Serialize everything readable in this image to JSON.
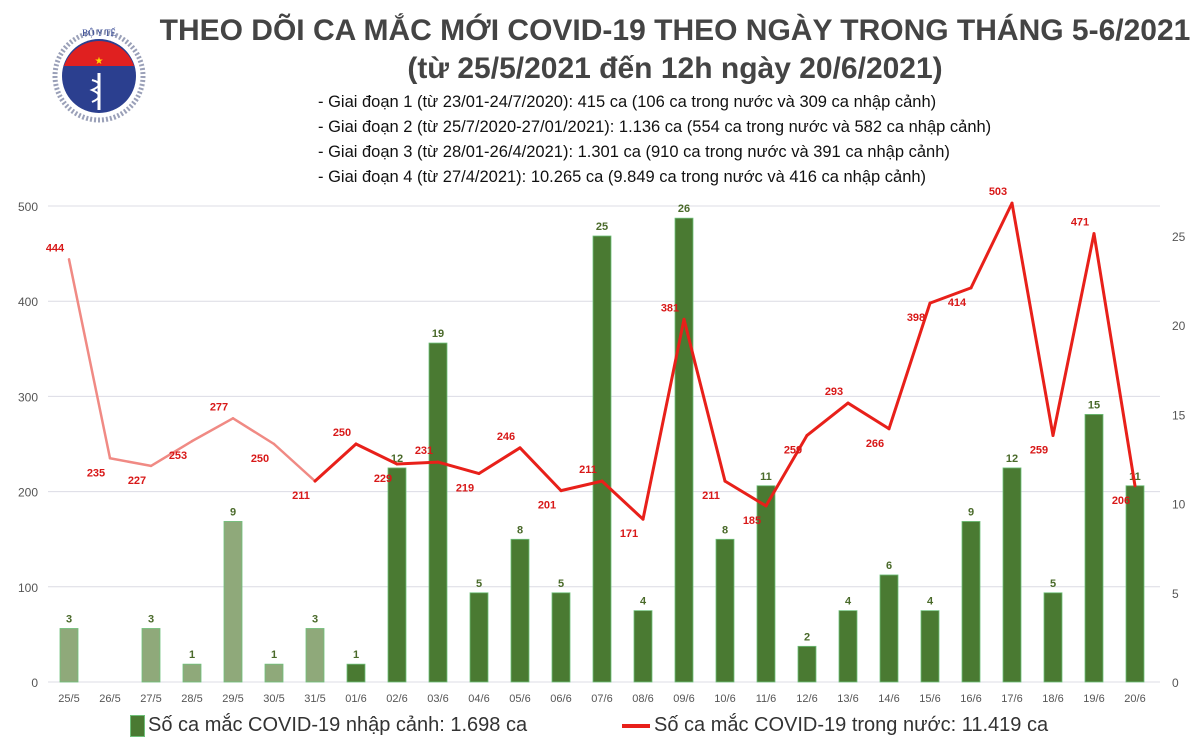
{
  "logo": {
    "text_top": "BỘ Y TẾ",
    "text_bottom": "MINISTRY OF HEALTH"
  },
  "title_line1": "THEO DÕI CA MẮC MỚI COVID-19 THEO NGÀY TRONG THÁNG 5-6/2021",
  "title_line2": "(từ 25/5/2021 đến 12h ngày 20/6/2021)",
  "notes": [
    "- Giai đoạn 1 (từ 23/01-24/7/2020): 415 ca (106 ca trong nước và 309 ca nhập cảnh)",
    "- Giai đoạn 2 (từ 25/7/2020-27/01/2021): 1.136 ca (554 ca trong nước và 582 ca nhập cảnh)",
    "- Giai đoạn 3 (từ 28/01-26/4/2021): 1.301 ca (910 ca trong nước và 391 ca nhập cảnh)",
    "- Giai đoạn 4 (từ 27/4/2021): 10.265 ca (9.849 ca trong nước và 416 ca nhập cảnh)"
  ],
  "chart_data": {
    "type": "bar+line",
    "categories": [
      "25/5",
      "26/5",
      "27/5",
      "28/5",
      "29/5",
      "30/5",
      "31/5",
      "01/6",
      "02/6",
      "03/6",
      "04/6",
      "05/6",
      "06/6",
      "07/6",
      "08/6",
      "09/6",
      "10/6",
      "11/6",
      "12/6",
      "13/6",
      "14/6",
      "15/6",
      "16/6",
      "17/6",
      "18/6",
      "19/6",
      "20/6"
    ],
    "series": [
      {
        "name": "Số ca mắc COVID-19 nhập cảnh: 1.698 ca",
        "type": "bar",
        "axis": "right",
        "values": [
          3,
          null,
          3,
          1,
          9,
          1,
          3,
          1,
          12,
          19,
          5,
          8,
          5,
          25,
          4,
          26,
          8,
          11,
          2,
          4,
          6,
          4,
          9,
          12,
          5,
          15,
          11
        ],
        "color": "#4a7a32",
        "faded_color": "#8fa97a"
      },
      {
        "name": "Số ca mắc COVID-19 trong nước: 11.419 ca",
        "type": "line",
        "axis": "left",
        "values": [
          444,
          235,
          227,
          253,
          277,
          250,
          211,
          250,
          229,
          231,
          219,
          246,
          201,
          211,
          171,
          381,
          211,
          185,
          259,
          293,
          266,
          398,
          414,
          503,
          259,
          471,
          206
        ],
        "color": "#e8201a",
        "faded_color": "#f08a84"
      }
    ],
    "y_left": {
      "ticks": [
        0,
        100,
        200,
        300,
        400,
        500
      ],
      "range": [
        0,
        500
      ]
    },
    "y_right": {
      "ticks": [
        0,
        5,
        10,
        15,
        20,
        25
      ],
      "range": [
        0,
        26.7
      ]
    },
    "grid": true,
    "legend": "bottom"
  }
}
